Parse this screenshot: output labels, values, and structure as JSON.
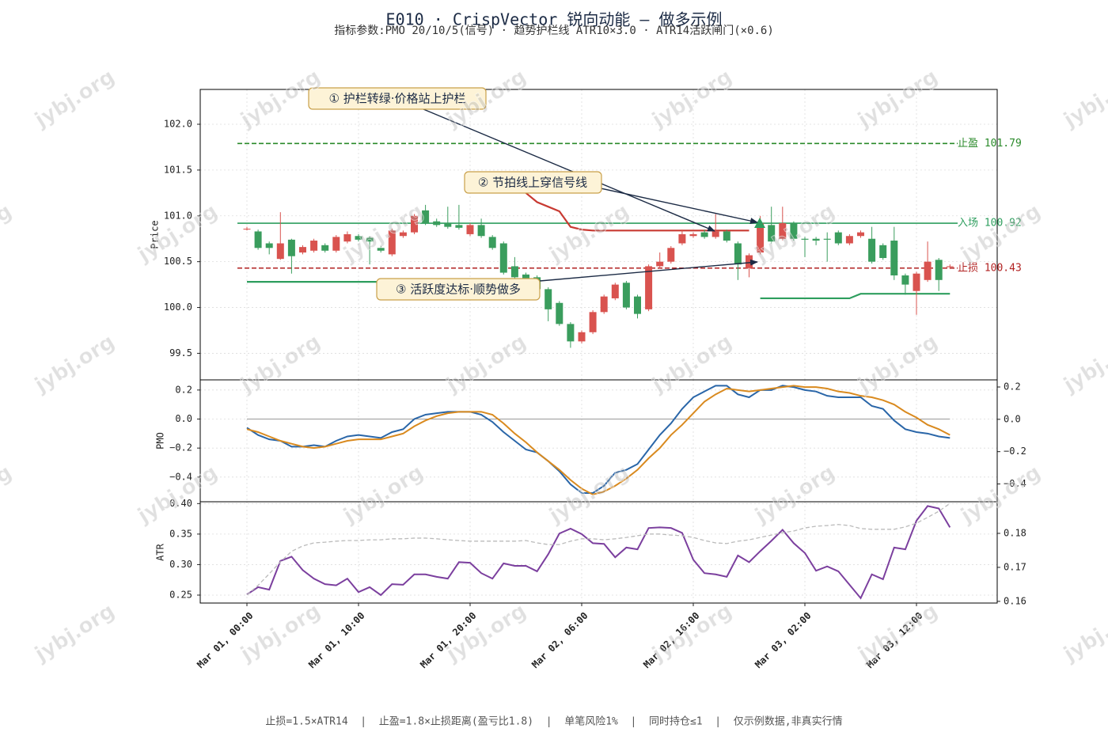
{
  "title": "E010 · CrispVector 锐向动能 — 做多示例",
  "subtitle": "指标参数:PMO 20/10/5(信号) · 趋势护栏线 ATR10×3.0 · ATR14活跃闸门(×0.6)",
  "footer": "止损=1.5×ATR14  |  止盈=1.8×止损距离(盈亏比1.8)  |  单笔风险1%  |  同时持仓≤1  |  仅示例数据,非真实行情",
  "watermark": "jybj.org",
  "chart_data": [
    {
      "type": "candlestick",
      "ylabel": "Price",
      "ylim": [
        99.21,
        102.38
      ],
      "yticks": [
        99.5,
        {
          "value": 100,
          "label": "100.0"
        },
        100.5,
        {
          "value": 101,
          "label": "101.0"
        },
        101.5,
        {
          "value": 102,
          "label": "102.0"
        }
      ],
      "grid": true,
      "up_color": "#d9534f",
      "down_color": "#3a9d5d",
      "open": [
        100.86,
        100.83,
        100.7,
        100.53,
        100.74,
        100.6,
        100.62,
        100.68,
        100.62,
        100.72,
        100.78,
        100.76,
        100.65,
        100.58,
        100.78,
        100.82,
        101.06,
        100.94,
        100.92,
        100.9,
        100.8,
        100.9,
        100.77,
        100.7,
        100.45,
        100.36,
        100.33,
        100.2,
        100.05,
        99.82,
        99.63,
        99.73,
        99.95,
        100.1,
        100.27,
        100.12,
        99.98,
        100.45,
        100.5,
        100.7,
        100.78,
        100.82,
        100.77,
        100.83,
        100.7,
        100.43,
        100.6,
        100.9,
        100.75,
        100.92,
        100.75,
        100.75,
        100.75,
        100.82,
        100.7,
        100.78,
        100.75,
        100.68,
        100.73,
        100.35,
        100.18,
        100.3,
        100.52,
        100.44
      ],
      "high": [
        100.88,
        100.85,
        100.72,
        101.04,
        100.75,
        100.68,
        100.75,
        100.7,
        100.79,
        100.83,
        100.8,
        100.78,
        100.67,
        100.86,
        100.84,
        101.02,
        101.12,
        100.97,
        101.1,
        101.12,
        100.92,
        100.97,
        100.79,
        100.72,
        100.55,
        100.38,
        100.35,
        100.22,
        100.07,
        99.84,
        99.75,
        99.97,
        100.14,
        100.27,
        100.29,
        100.14,
        100.47,
        100.6,
        100.67,
        100.85,
        100.82,
        100.85,
        101.02,
        100.85,
        100.72,
        100.59,
        101.0,
        101.1,
        101.1,
        100.94,
        100.77,
        100.77,
        100.82,
        100.84,
        100.8,
        100.84,
        100.88,
        100.7,
        100.88,
        100.37,
        100.39,
        100.72,
        100.54,
        100.47
      ],
      "low": [
        100.84,
        100.63,
        100.58,
        100.52,
        100.37,
        100.58,
        100.6,
        100.6,
        100.6,
        100.7,
        100.72,
        100.47,
        100.6,
        100.56,
        100.76,
        100.8,
        100.9,
        100.88,
        100.86,
        100.85,
        100.78,
        100.76,
        100.63,
        100.36,
        100.31,
        100.3,
        100.18,
        99.85,
        99.8,
        99.56,
        99.61,
        99.71,
        99.93,
        100.08,
        99.98,
        99.88,
        99.96,
        100.43,
        100.48,
        100.68,
        100.76,
        100.75,
        100.75,
        100.71,
        100.3,
        100.33,
        100.58,
        100.7,
        100.73,
        100.73,
        100.55,
        100.68,
        100.5,
        100.68,
        100.68,
        100.76,
        100.48,
        100.52,
        100.3,
        100.14,
        99.92,
        100.28,
        100.18,
        100.42
      ],
      "close": [
        100.86,
        100.65,
        100.65,
        100.7,
        100.56,
        100.66,
        100.73,
        100.62,
        100.77,
        100.8,
        100.74,
        100.72,
        100.62,
        100.84,
        100.82,
        101.0,
        100.92,
        100.9,
        100.88,
        100.87,
        100.9,
        100.78,
        100.65,
        100.38,
        100.33,
        100.32,
        100.2,
        99.98,
        99.82,
        99.63,
        99.73,
        99.95,
        100.12,
        100.25,
        100.0,
        99.93,
        100.45,
        100.5,
        100.65,
        100.8,
        100.8,
        100.77,
        100.83,
        100.73,
        100.47,
        100.57,
        100.92,
        100.72,
        100.92,
        100.75,
        100.74,
        100.73,
        100.74,
        100.7,
        100.78,
        100.82,
        100.5,
        100.54,
        100.35,
        100.25,
        100.37,
        100.5,
        100.3,
        100.45
      ],
      "series": [
        {
          "color": "#2e9e5e",
          "values": [
            100.28,
            100.28,
            100.28,
            100.28,
            100.28,
            100.28,
            100.28,
            100.28,
            100.28,
            100.28,
            100.28,
            100.28,
            100.28,
            100.28,
            100.28,
            100.28,
            100.28,
            100.28,
            100.28,
            100.28,
            100.28,
            100.28,
            100.28,
            100.28,
            100.28,
            100.28,
            null,
            null,
            null,
            null,
            null,
            null,
            null,
            null,
            null,
            null,
            null,
            null,
            null,
            null,
            null,
            null,
            null,
            null,
            null,
            null,
            100.1,
            100.1,
            100.1,
            100.1,
            100.1,
            100.1,
            100.1,
            100.1,
            100.1,
            100.15,
            100.15,
            100.15,
            100.15,
            100.15,
            100.15,
            100.15,
            100.15,
            100.15
          ]
        },
        {
          "color": "#c83a32",
          "values": [
            null,
            null,
            null,
            null,
            null,
            null,
            null,
            null,
            null,
            null,
            null,
            null,
            null,
            null,
            null,
            null,
            null,
            null,
            null,
            null,
            null,
            null,
            null,
            null,
            null,
            101.25,
            101.15,
            101.1,
            101.05,
            100.88,
            100.85,
            100.84,
            100.84,
            100.84,
            100.84,
            100.84,
            100.84,
            100.84,
            100.84,
            100.84,
            100.84,
            100.84,
            100.84,
            100.84,
            100.84,
            100.84,
            null,
            null,
            null,
            null,
            null,
            null,
            null,
            null,
            null,
            null,
            null,
            null,
            null,
            null,
            null,
            null,
            null,
            null
          ]
        }
      ],
      "levels": [
        {
          "name": "止盈",
          "value": 101.79,
          "label": "止盈 101.79",
          "color": "#2a8a2a",
          "style": "dashed"
        },
        {
          "name": "入场",
          "value": 100.92,
          "label": "入场 100.92",
          "color": "#2e9e5e",
          "style": "solid"
        },
        {
          "name": "止损",
          "value": 100.43,
          "label": "止损 100.43",
          "color": "#b22222",
          "style": "dashed"
        }
      ],
      "annotations": [
        "① 护栏转绿·价格站上护栏",
        "② 节拍线上穿信号线",
        "③ 活跃度达标·顺势做多"
      ]
    },
    {
      "type": "line",
      "ylabel": "PMO",
      "ylim": [
        -0.57,
        0.27
      ],
      "yticks": [
        {
          "value": -0.4,
          "label": "−0.4"
        },
        {
          "value": -0.2,
          "label": "−0.2"
        },
        {
          "value": 0,
          "label": "0.0"
        },
        0.2
      ],
      "y2lim": [
        -0.51,
        0.244
      ],
      "y2ticks": [
        {
          "value": -0.4,
          "label": "−0.4"
        },
        {
          "value": -0.2,
          "label": "−0.2"
        },
        {
          "value": 0,
          "label": "0.0"
        },
        0.2
      ],
      "reference_line": 0,
      "grid": true,
      "series": [
        {
          "color": "#2a66a8",
          "values": [
            -0.06,
            -0.11,
            -0.14,
            -0.15,
            -0.19,
            -0.19,
            -0.18,
            -0.19,
            -0.15,
            -0.12,
            -0.11,
            -0.12,
            -0.13,
            -0.09,
            -0.07,
            0.0,
            0.03,
            0.04,
            0.05,
            0.05,
            0.05,
            0.03,
            -0.02,
            -0.09,
            -0.15,
            -0.21,
            -0.23,
            -0.29,
            -0.36,
            -0.45,
            -0.51,
            -0.51,
            -0.46,
            -0.37,
            -0.35,
            -0.31,
            -0.21,
            -0.11,
            -0.03,
            0.07,
            0.15,
            0.19,
            0.23,
            0.23,
            0.17,
            0.15,
            0.2,
            0.2,
            0.23,
            0.22,
            0.2,
            0.19,
            0.16,
            0.15,
            0.15,
            0.15,
            0.09,
            0.07,
            -0.01,
            -0.07,
            -0.09,
            -0.1,
            -0.12,
            -0.13
          ]
        },
        {
          "color": "#d98a1f",
          "values": [
            -0.07,
            -0.09,
            -0.12,
            -0.15,
            -0.17,
            -0.19,
            -0.2,
            -0.19,
            -0.17,
            -0.15,
            -0.14,
            -0.14,
            -0.14,
            -0.12,
            -0.1,
            -0.05,
            -0.01,
            0.02,
            0.04,
            0.05,
            0.05,
            0.05,
            0.03,
            -0.03,
            -0.1,
            -0.16,
            -0.23,
            -0.29,
            -0.35,
            -0.42,
            -0.48,
            -0.52,
            -0.5,
            -0.46,
            -0.41,
            -0.35,
            -0.27,
            -0.2,
            -0.11,
            -0.04,
            0.04,
            0.12,
            0.17,
            0.21,
            0.2,
            0.19,
            0.2,
            0.21,
            0.22,
            0.23,
            0.22,
            0.22,
            0.21,
            0.19,
            0.18,
            0.16,
            0.15,
            0.13,
            0.1,
            0.05,
            0.01,
            -0.04,
            -0.07,
            -0.11
          ]
        }
      ]
    },
    {
      "type": "line",
      "ylabel": "ATR",
      "ylim": [
        0.237,
        0.403
      ],
      "yticks": [
        0.25,
        {
          "value": 0.3,
          "label": "0.30"
        },
        0.35,
        {
          "value": 0.4,
          "label": "0.40"
        }
      ],
      "y2lim": [
        0.1595,
        0.1893
      ],
      "y2ticks": [
        0.16,
        0.17,
        0.18
      ],
      "grid": true,
      "categories": [
        "Mar 01, 00:00",
        null,
        null,
        null,
        null,
        null,
        null,
        null,
        null,
        null,
        "Mar 01, 10:00",
        null,
        null,
        null,
        null,
        null,
        null,
        null,
        null,
        null,
        "Mar 01, 20:00",
        null,
        null,
        null,
        null,
        null,
        null,
        null,
        null,
        null,
        "Mar 02, 06:00",
        null,
        null,
        null,
        null,
        null,
        null,
        null,
        null,
        null,
        "Mar 02, 16:00",
        null,
        null,
        null,
        null,
        null,
        null,
        null,
        null,
        null,
        "Mar 03, 02:00",
        null,
        null,
        null,
        null,
        null,
        null,
        null,
        null,
        null,
        "Mar 03, 12:00",
        null,
        null,
        null
      ],
      "series": [
        {
          "color": "#7b3f9e",
          "values": [
            0.251,
            0.263,
            0.259,
            0.306,
            0.313,
            0.291,
            0.277,
            0.268,
            0.266,
            0.277,
            0.255,
            0.263,
            0.25,
            0.268,
            0.267,
            0.284,
            0.284,
            0.28,
            0.277,
            0.304,
            0.303,
            0.286,
            0.277,
            0.302,
            0.298,
            0.298,
            0.289,
            0.317,
            0.351,
            0.359,
            0.35,
            0.335,
            0.334,
            0.312,
            0.328,
            0.325,
            0.36,
            0.361,
            0.36,
            0.352,
            0.308,
            0.286,
            0.284,
            0.28,
            0.315,
            0.304,
            0.322,
            0.339,
            0.357,
            0.335,
            0.319,
            0.29,
            0.297,
            0.289,
            0.267,
            0.245,
            0.284,
            0.276,
            0.328,
            0.325,
            0.372,
            0.396,
            0.392,
            0.361
          ]
        },
        {
          "color": "#bbbbbb",
          "axis": "y2",
          "style": "dashed",
          "values": [
            0.1619,
            0.1647,
            0.1681,
            0.1716,
            0.1747,
            0.1763,
            0.1772,
            0.1774,
            0.1777,
            0.1779,
            0.1779,
            0.1781,
            0.1781,
            0.1784,
            0.1784,
            0.1786,
            0.1786,
            0.1784,
            0.1781,
            0.1779,
            0.1777,
            0.1777,
            0.1777,
            0.1777,
            0.1777,
            0.1779,
            0.1772,
            0.1767,
            0.1767,
            0.1777,
            0.1784,
            0.1784,
            0.1781,
            0.1784,
            0.1788,
            0.1793,
            0.1798,
            0.1798,
            0.1795,
            0.1793,
            0.1788,
            0.1779,
            0.1772,
            0.177,
            0.1777,
            0.1781,
            0.1788,
            0.1795,
            0.1802,
            0.1807,
            0.1816,
            0.1821,
            0.1823,
            0.1826,
            0.1823,
            0.1814,
            0.1812,
            0.1812,
            0.1812,
            0.1819,
            0.183,
            0.1847,
            0.1865,
            0.1888
          ]
        }
      ]
    }
  ]
}
